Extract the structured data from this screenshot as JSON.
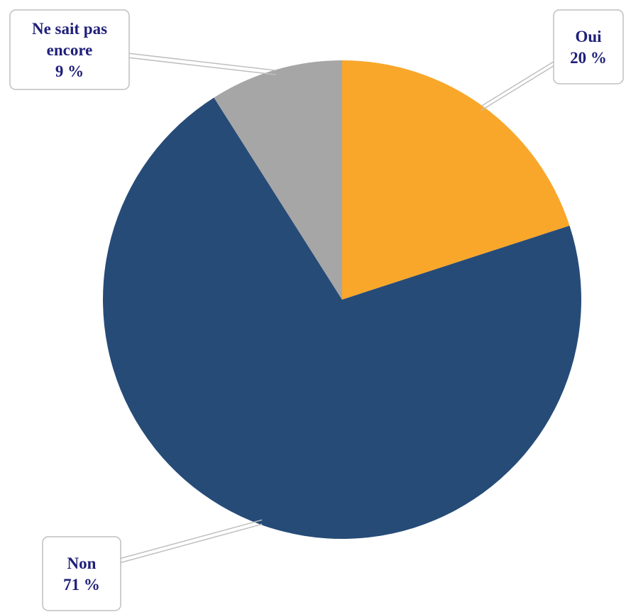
{
  "chart_data": {
    "type": "pie",
    "title": "",
    "slices": [
      {
        "label": "Oui",
        "value": 20,
        "value_label": "20 %",
        "color": "#F9A72B"
      },
      {
        "label": "Non",
        "value": 71,
        "value_label": "71 %",
        "color": "#264B77"
      },
      {
        "label": "Ne sait pas encore",
        "value": 9,
        "value_label": "9 %",
        "color": "#A6A6A6"
      }
    ],
    "start": "12 o'clock",
    "direction": "clockwise",
    "legend": "none",
    "data_labels": "callout boxes with leader lines",
    "label_color": "#1F1F7A"
  }
}
